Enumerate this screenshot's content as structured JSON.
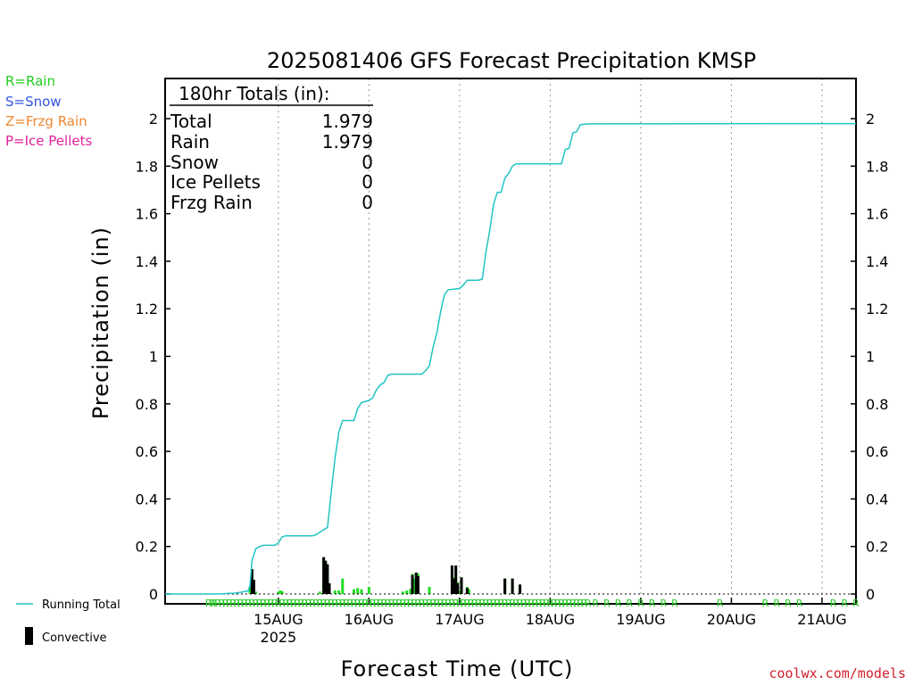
{
  "legend_types": [
    {
      "text": "R=Rain",
      "color": "#22cc22"
    },
    {
      "text": "S=Snow",
      "color": "#3355dd"
    },
    {
      "text": "Z=Frzg Rain",
      "color": "#ee8833"
    },
    {
      "text": "P=Ice Pellets",
      "color": "#dd2299"
    }
  ],
  "credit": "coolwx.com/models",
  "legend_bottom": {
    "running_total": "Running Total",
    "convective": "Convective"
  },
  "totals_box": {
    "heading": "180hr Totals (in):",
    "rows": [
      {
        "label": "Total",
        "value": "1.979"
      },
      {
        "label": "Rain",
        "value": "1.979"
      },
      {
        "label": "Snow",
        "value": "0"
      },
      {
        "label": "Ice Pellets",
        "value": "0"
      },
      {
        "label": "Frzg Rain",
        "value": "0"
      }
    ]
  },
  "colors": {
    "running_total": "#22c4c4",
    "bar_total": "#22dd22",
    "bar_convective": "#000000",
    "ptype": "#22cc22"
  },
  "chart_data": {
    "type": "bar+line",
    "title": "2025081406 GFS Forecast Precipitation KMSP",
    "xlabel": "Forecast Time (UTC)",
    "ylabel": "Precipitation (in)",
    "ylim": [
      0,
      2.2
    ],
    "yticks": [
      0,
      0.2,
      0.4,
      0.6,
      0.8,
      1,
      1.2,
      1.4,
      1.6,
      1.8,
      2
    ],
    "x_range_hours": [
      -12,
      171
    ],
    "day_ticks": [
      {
        "hour": 18,
        "label": "15AUG",
        "sub": "2025"
      },
      {
        "hour": 42,
        "label": "16AUG",
        "sub": ""
      },
      {
        "hour": 66,
        "label": "17AUG",
        "sub": ""
      },
      {
        "hour": 90,
        "label": "18AUG",
        "sub": ""
      },
      {
        "hour": 114,
        "label": "19AUG",
        "sub": ""
      },
      {
        "hour": 138,
        "label": "20AUG",
        "sub": ""
      },
      {
        "hour": 162,
        "label": "21AUG",
        "sub": ""
      }
    ],
    "running_total": {
      "name": "Running Total",
      "points": [
        [
          -12,
          0
        ],
        [
          0,
          0
        ],
        [
          3,
          0.001
        ],
        [
          4,
          0.002
        ],
        [
          5,
          0.003
        ],
        [
          6,
          0.003
        ],
        [
          7,
          0.005
        ],
        [
          8,
          0.007
        ],
        [
          9,
          0.01
        ],
        [
          10,
          0.012
        ],
        [
          10.5,
          0.04
        ],
        [
          11,
          0.14
        ],
        [
          12,
          0.19
        ],
        [
          13,
          0.2
        ],
        [
          14,
          0.205
        ],
        [
          17,
          0.205
        ],
        [
          18,
          0.215
        ],
        [
          19,
          0.24
        ],
        [
          20,
          0.245
        ],
        [
          27,
          0.245
        ],
        [
          28,
          0.25
        ],
        [
          29,
          0.26
        ],
        [
          30,
          0.27
        ],
        [
          31,
          0.28
        ],
        [
          32,
          0.43
        ],
        [
          33,
          0.57
        ],
        [
          34,
          0.68
        ],
        [
          35,
          0.73
        ],
        [
          38,
          0.73
        ],
        [
          39,
          0.78
        ],
        [
          40,
          0.805
        ],
        [
          41,
          0.81
        ],
        [
          42,
          0.815
        ],
        [
          43,
          0.825
        ],
        [
          44,
          0.86
        ],
        [
          45,
          0.88
        ],
        [
          46,
          0.89
        ],
        [
          47,
          0.92
        ],
        [
          48,
          0.925
        ],
        [
          56,
          0.925
        ],
        [
          57,
          0.94
        ],
        [
          58,
          0.96
        ],
        [
          59,
          1.04
        ],
        [
          60,
          1.1
        ],
        [
          61,
          1.19
        ],
        [
          62,
          1.26
        ],
        [
          63,
          1.28
        ],
        [
          66,
          1.285
        ],
        [
          67,
          1.3
        ],
        [
          68,
          1.32
        ],
        [
          71,
          1.32
        ],
        [
          72,
          1.325
        ],
        [
          73,
          1.44
        ],
        [
          74,
          1.53
        ],
        [
          75,
          1.64
        ],
        [
          76,
          1.69
        ],
        [
          77,
          1.69
        ],
        [
          78,
          1.75
        ],
        [
          79,
          1.77
        ],
        [
          80,
          1.8
        ],
        [
          81,
          1.81
        ],
        [
          93,
          1.81
        ],
        [
          94,
          1.87
        ],
        [
          95,
          1.875
        ],
        [
          96,
          1.94
        ],
        [
          97,
          1.945
        ],
        [
          98,
          1.975
        ],
        [
          100,
          1.978
        ],
        [
          171,
          1.979
        ]
      ]
    },
    "bars": {
      "total": [
        [
          10.5,
          0.03
        ],
        [
          11,
          0.105
        ],
        [
          11.5,
          0.06
        ],
        [
          12,
          0.01
        ],
        [
          18,
          0.01
        ],
        [
          18.5,
          0.015
        ],
        [
          19,
          0.012
        ],
        [
          29,
          0.01
        ],
        [
          30,
          0.155
        ],
        [
          30.5,
          0.14
        ],
        [
          31,
          0.125
        ],
        [
          31.5,
          0.045
        ],
        [
          33,
          0.015
        ],
        [
          34,
          0.015
        ],
        [
          35,
          0.065
        ],
        [
          38,
          0.02
        ],
        [
          39,
          0.025
        ],
        [
          40,
          0.02
        ],
        [
          42,
          0.03
        ],
        [
          51,
          0.01
        ],
        [
          52,
          0.015
        ],
        [
          53,
          0.022
        ],
        [
          53.5,
          0.085
        ],
        [
          54,
          0.065
        ],
        [
          54.5,
          0.09
        ],
        [
          55,
          0.085
        ],
        [
          58,
          0.03
        ],
        [
          64,
          0.12
        ],
        [
          64.5,
          0.07
        ],
        [
          65,
          0.12
        ],
        [
          65.5,
          0.05
        ],
        [
          66,
          0.015
        ],
        [
          66.5,
          0.07
        ],
        [
          68,
          0.03
        ],
        [
          68.5,
          0.02
        ],
        [
          78,
          0.065
        ],
        [
          80,
          0.065
        ],
        [
          82,
          0.04
        ]
      ],
      "convective": [
        [
          11,
          0.105
        ],
        [
          11.5,
          0.06
        ],
        [
          30,
          0.155
        ],
        [
          30.5,
          0.14
        ],
        [
          31,
          0.125
        ],
        [
          31.5,
          0.045
        ],
        [
          53.5,
          0.08
        ],
        [
          54.5,
          0.09
        ],
        [
          55,
          0.075
        ],
        [
          64,
          0.12
        ],
        [
          64.5,
          0.065
        ],
        [
          65,
          0.12
        ],
        [
          65.5,
          0.045
        ],
        [
          66.5,
          0.07
        ],
        [
          68,
          0.025
        ],
        [
          78,
          0.065
        ],
        [
          80,
          0.065
        ],
        [
          82,
          0.04
        ]
      ]
    },
    "ptype": {
      "label": "R",
      "hours": [
        -0.5,
        0.5,
        1,
        2,
        3,
        4,
        5,
        6,
        7,
        8,
        9,
        10,
        11,
        12,
        13,
        14,
        15,
        16,
        17,
        18,
        19,
        20,
        21,
        22,
        23,
        24,
        25,
        26,
        27,
        28,
        29,
        30,
        31,
        32,
        33,
        34,
        35,
        36,
        37,
        38,
        39,
        40,
        41,
        42,
        43,
        44,
        45,
        46,
        47,
        48,
        49,
        50,
        51,
        52,
        53,
        54,
        55,
        56,
        57,
        58,
        59,
        60,
        61,
        62,
        63,
        64,
        65,
        66,
        67,
        68,
        69,
        70,
        71,
        72,
        73,
        74,
        75,
        76,
        77,
        78,
        79,
        80,
        81,
        82,
        83,
        84,
        85,
        86,
        87,
        88,
        89,
        90,
        91,
        92,
        93,
        94,
        95,
        96,
        97,
        98,
        99,
        100,
        102,
        105,
        108,
        111,
        114,
        117,
        120,
        123,
        135,
        147,
        150,
        153,
        156,
        165,
        168,
        171
      ]
    }
  }
}
